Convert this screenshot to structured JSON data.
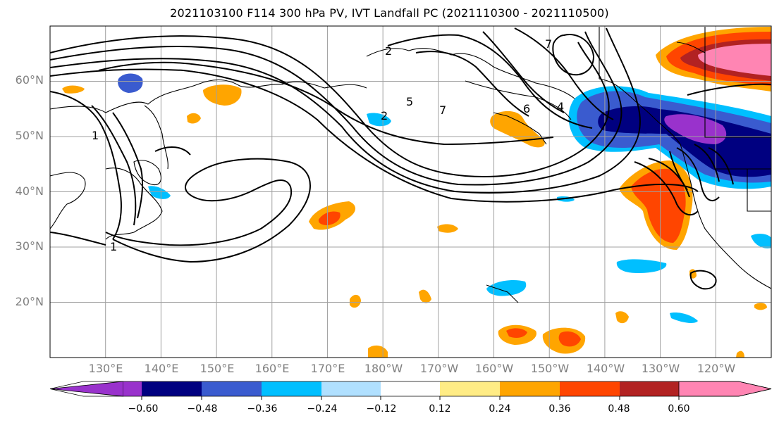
{
  "title": "2021103100 F114 300 hPa PV, IVT Landfall PC (2021110300 - 2021110500)",
  "colors": {
    "levels_neg": [
      "#9932cc",
      "#000080",
      "#3a5bcf",
      "#00bfff",
      "#b0e0ff"
    ],
    "level_zero": "#ffffff",
    "levels_pos": [
      "#ffec85",
      "#ffa500",
      "#ff4500",
      "#b22222",
      "#ff85b3"
    ],
    "contour": "#000000",
    "grid": "#a0a0a0",
    "coast": "#000000"
  },
  "chart_data": {
    "type": "heatmap",
    "title": "2021103100 F114 300 hPa PV, IVT Landfall PC (2021110300 - 2021110500)",
    "projection": "PlateCarree",
    "lon_range_east": [
      120,
      250
    ],
    "lat_range": [
      10,
      70
    ],
    "x_ticks": [
      "130°E",
      "140°E",
      "150°E",
      "160°E",
      "170°E",
      "180°W",
      "170°W",
      "160°W",
      "150°W",
      "140°W",
      "130°W",
      "120°W"
    ],
    "y_ticks": [
      "60°N",
      "50°N",
      "40°N",
      "30°N",
      "20°N"
    ],
    "colorbar": {
      "boundaries": [
        -0.6,
        -0.48,
        -0.36,
        -0.24,
        -0.12,
        0.12,
        0.24,
        0.36,
        0.48,
        0.6
      ],
      "tick_labels": [
        "−0.60",
        "−0.48",
        "−0.36",
        "−0.24",
        "−0.12",
        "0.12",
        "0.24",
        "0.36",
        "0.48",
        "0.60"
      ],
      "extend": "both"
    },
    "contour_labels": [
      "1",
      "2",
      "2",
      "5",
      "7",
      "6",
      "4",
      "1",
      "7"
    ],
    "shaded_features": [
      {
        "name": "positive anomaly",
        "region": "Gulf of Alaska high latitude",
        "lon_range": [
          235,
          250
        ],
        "lat_range": [
          59,
          69
        ],
        "max_value": 0.6
      },
      {
        "name": "negative anomaly",
        "region": "NE Pacific / Pacific Northwest",
        "lon_range": [
          217,
          250
        ],
        "lat_range": [
          43,
          56
        ],
        "min_value": -0.6
      },
      {
        "name": "positive anomaly",
        "region": "off California",
        "lon_range": [
          222,
          233
        ],
        "lat_range": [
          29,
          42
        ],
        "max_value": 0.48
      },
      {
        "name": "positive anomaly",
        "region": "central North Pacific",
        "lon_range": [
          170,
          176
        ],
        "lat_range": [
          33,
          37
        ],
        "max_value": 0.36
      },
      {
        "name": "positive anomaly",
        "region": "south of Hawaii",
        "lon_range": [
          199,
          215
        ],
        "lat_range": [
          12,
          16
        ],
        "max_value": 0.36
      },
      {
        "name": "negative anomaly",
        "region": "Hawaii",
        "lon_range": [
          197,
          205
        ],
        "lat_range": [
          22,
          25
        ],
        "min_value": -0.36
      }
    ]
  }
}
